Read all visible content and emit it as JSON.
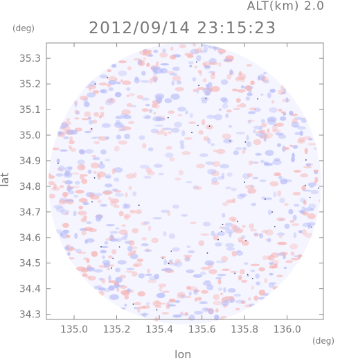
{
  "header": {
    "altitude_label": "ALT(km)  2.0",
    "timestamp": "2012/09/14  23:15:23"
  },
  "axes": {
    "y_unit": "(deg)",
    "x_unit": "(deg)",
    "x_label": "lon",
    "y_label": "lat"
  },
  "colors": {
    "frame": "#888888",
    "text": "#777777",
    "positive": "#f6b7b7",
    "negative": "#b7bcf6",
    "background_disc": "#f5f5ff"
  },
  "chart_data": {
    "type": "heatmap",
    "title": "2012/09/14  23:15:23",
    "subtitle": "ALT(km)  2.0",
    "xlabel": "lon",
    "ylabel": "lat",
    "xlim": [
      134.87,
      136.17
    ],
    "ylim": [
      34.28,
      35.36
    ],
    "x_ticks": [
      135.0,
      135.2,
      135.4,
      135.6,
      135.8,
      136.0
    ],
    "x_tick_labels": [
      "135.0",
      "135.2",
      "135.4",
      "135.6",
      "135.8",
      "136.0"
    ],
    "y_ticks": [
      34.3,
      34.4,
      34.5,
      34.6,
      34.7,
      34.8,
      34.9,
      35.0,
      35.1,
      35.2,
      35.3
    ],
    "y_tick_labels": [
      "34.3",
      "34.4",
      "34.5",
      "34.6",
      "34.7",
      "34.8",
      "34.9",
      "35.0",
      "35.1",
      "35.2",
      "35.3"
    ],
    "coverage": {
      "shape": "circle",
      "center": [
        135.52,
        34.81
      ],
      "radius_lon": 0.64,
      "radius_lat": 0.55
    },
    "color_scale": "diverging blue-white-red, near-zero values dominant"
  }
}
